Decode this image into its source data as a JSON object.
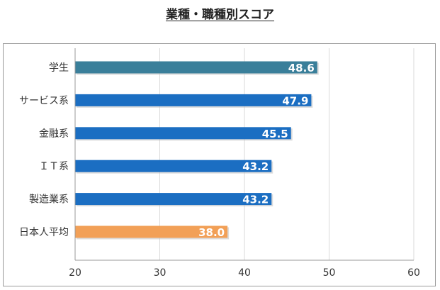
{
  "chart_data": {
    "type": "bar",
    "orientation": "horizontal",
    "title": "業種・職種別スコア",
    "xlabel": "",
    "ylabel": "",
    "xlim": [
      20,
      60
    ],
    "xticks": [
      "20",
      "30",
      "40",
      "50",
      "60"
    ],
    "xtick_values": [
      20,
      30,
      40,
      50,
      60
    ],
    "grid": true,
    "categories": [
      "学生",
      "サービス系",
      "金融系",
      "ＩＴ系",
      "製造業系",
      "日本人平均"
    ],
    "values": [
      48.6,
      47.9,
      45.5,
      43.2,
      43.2,
      38.0
    ],
    "labels": [
      "48.6",
      "47.9",
      "45.5",
      "43.2",
      "43.2",
      "38.0"
    ],
    "bar_colors": [
      "#3a7f9a",
      "#1b6ec2",
      "#1b6ec2",
      "#1b6ec2",
      "#1b6ec2",
      "#f2a057"
    ]
  },
  "colors": {
    "grid": "#d9d9d9",
    "axis": "#9a9a9a",
    "label_text": "#ffffff",
    "tick_text": "#333333"
  }
}
